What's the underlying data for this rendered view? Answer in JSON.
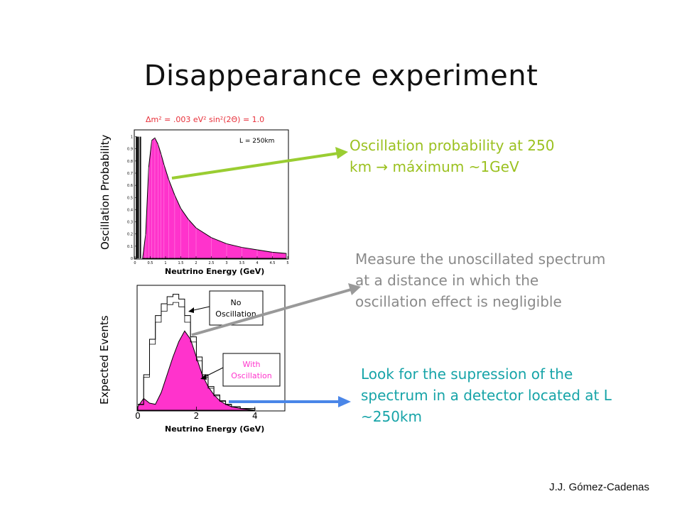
{
  "slide": {
    "title": "Disappearance experiment",
    "credit": "J.J. Gómez-Cadenas"
  },
  "notes": {
    "oscillation_probability": "Oscillation probability at 250\nkm → máximum ~1GeV",
    "unoscillated": "Measure the unoscillated spectrum\nat a distance in which the\noscillation effect is negligible",
    "suppression": "Look for the supression of the\nspectrum in a detector located at L\n~250km"
  },
  "colors": {
    "magenta": "#ff33cc",
    "green_arrow": "#9acd32",
    "gray_arrow": "#999999",
    "blue_arrow": "#4a86e8",
    "param_red": "#e8303a"
  },
  "chart_data": [
    {
      "type": "area",
      "params": "Δm² = .003 eV²   sin²(2Θ) = 1.0",
      "annotation": "L = 250km",
      "xlabel": "Neutrino Energy (GeV)",
      "ylabel": "Oscillation Probability",
      "xlim": [
        0,
        5
      ],
      "ylim": [
        0,
        1.05
      ],
      "x_ticks": [
        "0",
        "0.5",
        "1",
        "1.5",
        "2",
        "2.5",
        "3",
        "3.5",
        "4",
        "4.5",
        "5"
      ],
      "y_ticks": [
        "0",
        "0.1",
        "0.2",
        "0.3",
        "0.4",
        "0.5",
        "0.6",
        "0.7",
        "0.8",
        "0.9",
        "1"
      ],
      "x": [
        0.25,
        0.35,
        0.45,
        0.55,
        0.65,
        0.75,
        0.85,
        0.95,
        1.1,
        1.3,
        1.5,
        1.75,
        2.0,
        2.5,
        3.0,
        3.5,
        4.0,
        4.5,
        4.95
      ],
      "values": [
        0.0,
        0.2,
        0.75,
        0.97,
        0.99,
        0.94,
        0.86,
        0.77,
        0.65,
        0.52,
        0.41,
        0.32,
        0.25,
        0.17,
        0.12,
        0.09,
        0.07,
        0.05,
        0.04
      ]
    },
    {
      "type": "area",
      "xlabel": "Neutrino Energy (GeV)",
      "ylabel": "Expected Events",
      "xlim": [
        0,
        5
      ],
      "ylim": [
        0,
        1.05
      ],
      "x_ticks": [
        "0",
        "2",
        "4"
      ],
      "annotations": [
        "No\nOscillation",
        "With\nOscillation"
      ],
      "series": [
        {
          "name": "No Oscillation",
          "x": [
            0.0,
            0.2,
            0.4,
            0.6,
            0.8,
            1.0,
            1.2,
            1.4,
            1.6,
            1.8,
            2.0,
            2.2,
            2.4,
            2.6,
            2.8,
            3.0,
            3.2,
            3.5,
            4.0
          ],
          "values": [
            0.05,
            0.3,
            0.6,
            0.8,
            0.9,
            0.96,
            0.98,
            0.94,
            0.8,
            0.62,
            0.45,
            0.3,
            0.2,
            0.13,
            0.08,
            0.05,
            0.03,
            0.015,
            0.0
          ]
        },
        {
          "name": "With Oscillation",
          "x": [
            0.0,
            0.2,
            0.4,
            0.6,
            0.8,
            1.0,
            1.2,
            1.4,
            1.6,
            1.8,
            2.0,
            2.2,
            2.4,
            2.6,
            2.8,
            3.0,
            3.2,
            3.5,
            4.0
          ],
          "values": [
            0.03,
            0.1,
            0.06,
            0.05,
            0.15,
            0.3,
            0.45,
            0.58,
            0.67,
            0.6,
            0.45,
            0.3,
            0.2,
            0.13,
            0.08,
            0.05,
            0.03,
            0.015,
            0.0
          ]
        }
      ]
    }
  ]
}
